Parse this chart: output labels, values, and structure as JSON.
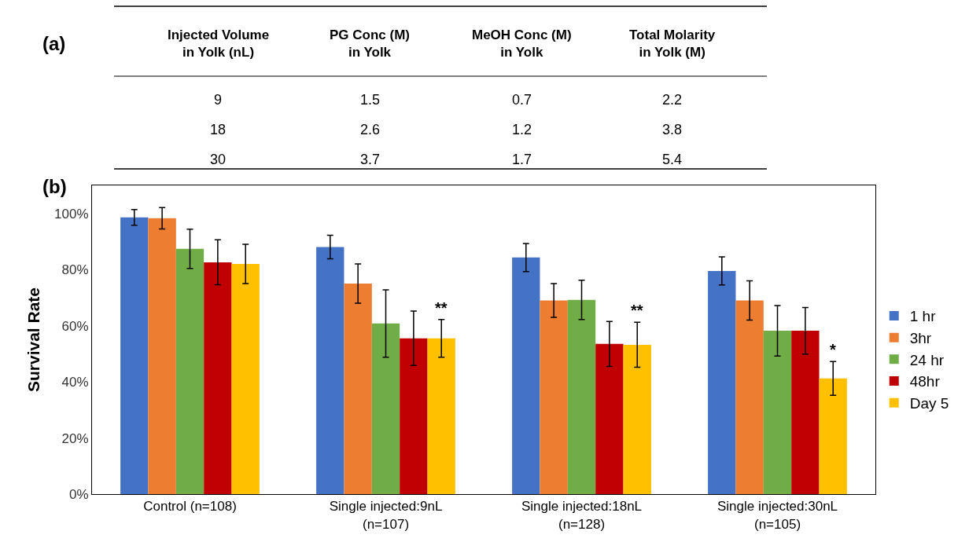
{
  "chart_data": [
    {
      "type": "other",
      "title": "(a)",
      "categories": [
        "Injected Volume\nin Yolk (nL)",
        "PG Conc (M)\nin Yolk",
        "MeOH Conc (M)\nin Yolk",
        "Total Molarity\nin Yolk (M)"
      ],
      "annotations": [
        "9",
        "1.5",
        "0.7",
        "2.2",
        "18",
        "2.6",
        "1.2",
        "3.8",
        "30",
        "3.7",
        "1.7",
        "5.4"
      ]
    },
    {
      "type": "bar",
      "title": "(b)",
      "ylabel": "Survival Rate",
      "categories": [
        "Control (n=108)",
        "Single injected:9nL\n(n=107)",
        "Single injected:18nL\n(n=128)",
        "Single injected:30nL\n(n=105)"
      ],
      "series": [
        {
          "name": "1 hr",
          "color": "#4472c4",
          "values": [
            98.6,
            88,
            84.3,
            79.5
          ],
          "errors": [
            2.8,
            4.2,
            5,
            5
          ]
        },
        {
          "name": "3hr",
          "color": "#ed7d31",
          "values": [
            98.3,
            75,
            69,
            69
          ],
          "errors": [
            3.8,
            7,
            6,
            7
          ]
        },
        {
          "name": "24 hr",
          "color": "#70ad47",
          "values": [
            87.4,
            60.8,
            69.2,
            58.2
          ],
          "errors": [
            7,
            12,
            7,
            9
          ]
        },
        {
          "name": "48hr",
          "color": "#c00000",
          "values": [
            82.6,
            55.5,
            53.5,
            58.2
          ],
          "errors": [
            8,
            9.7,
            8,
            8.3
          ]
        },
        {
          "name": "Day 5",
          "color": "#ffc000",
          "values": [
            82,
            55.5,
            53.2,
            41.2
          ],
          "errors": [
            7,
            6.7,
            8,
            6
          ]
        }
      ],
      "ylim": [
        0,
        110
      ],
      "yticks": [
        {
          "value": 0,
          "label": "0%"
        },
        {
          "value": 20,
          "label": "20%"
        },
        {
          "value": 40,
          "label": "40%"
        },
        {
          "value": 60,
          "label": "60%"
        },
        {
          "value": 80,
          "label": "80%"
        },
        {
          "value": 100,
          "label": "100%"
        }
      ],
      "grid": false,
      "legend": "right",
      "annotations": [
        "**",
        "**",
        "*"
      ]
    }
  ]
}
